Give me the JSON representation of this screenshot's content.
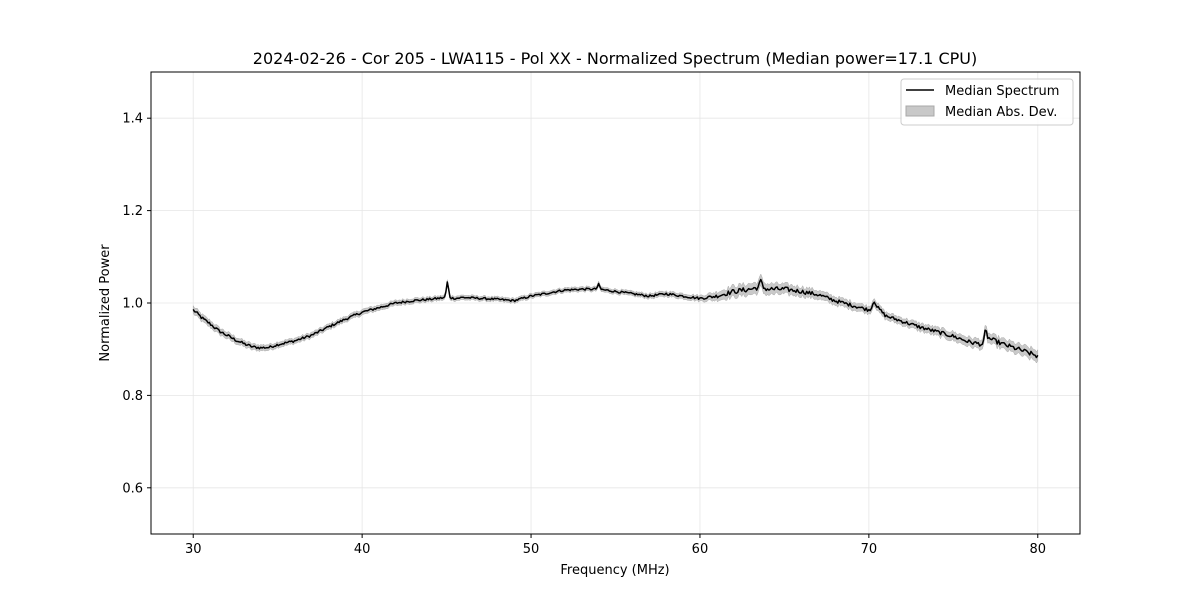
{
  "chart_data": {
    "type": "line",
    "title": "2024-02-26 - Cor 205 - LWA115 - Pol XX - Normalized Spectrum (Median power=17.1 CPU)",
    "xlabel": "Frequency (MHz)",
    "ylabel": "Normalized Power",
    "xlim": [
      27.5,
      82.5
    ],
    "ylim": [
      0.5,
      1.5
    ],
    "xticks": [
      30,
      40,
      50,
      60,
      70,
      80
    ],
    "yticks": [
      0.6,
      0.8,
      1.0,
      1.2,
      1.4
    ],
    "xtick_labels": [
      "30",
      "40",
      "50",
      "60",
      "70",
      "80"
    ],
    "ytick_labels": [
      "0.6",
      "0.8",
      "1.0",
      "1.2",
      "1.4"
    ],
    "grid": true,
    "legend": {
      "position": "top-right",
      "entries": [
        {
          "label": "Median Spectrum",
          "kind": "line",
          "color": "#000000"
        },
        {
          "label": "Median Abs. Dev.",
          "kind": "band",
          "color": "#bbbbbb"
        }
      ]
    },
    "series": [
      {
        "name": "Median Spectrum",
        "x": [
          30,
          30.3,
          30.6,
          31,
          31.5,
          32,
          32.5,
          33,
          33.5,
          34,
          34.5,
          35,
          36,
          37,
          38,
          39,
          40,
          41,
          42,
          43,
          44,
          45,
          45.5,
          46,
          47,
          48,
          49,
          50,
          50.8,
          51.5,
          52,
          53,
          54,
          55,
          56,
          57,
          58,
          59,
          60,
          61,
          62,
          63,
          63.6,
          64,
          65,
          66,
          67,
          68,
          69,
          70,
          70.4,
          71,
          72,
          73,
          74,
          75,
          76,
          76.8,
          77,
          78,
          79,
          80
        ],
        "y": [
          0.985,
          0.975,
          0.965,
          0.955,
          0.94,
          0.93,
          0.92,
          0.912,
          0.905,
          0.903,
          0.904,
          0.91,
          0.918,
          0.93,
          0.948,
          0.965,
          0.98,
          0.99,
          1.0,
          1.005,
          1.008,
          1.012,
          1.01,
          1.012,
          1.01,
          1.008,
          1.005,
          1.015,
          1.02,
          1.025,
          1.028,
          1.03,
          1.03,
          1.025,
          1.02,
          1.015,
          1.02,
          1.015,
          1.01,
          1.015,
          1.025,
          1.03,
          1.035,
          1.03,
          1.03,
          1.025,
          1.018,
          1.005,
          0.995,
          0.985,
          0.995,
          0.972,
          0.96,
          0.948,
          0.938,
          0.928,
          0.915,
          0.91,
          0.925,
          0.91,
          0.898,
          0.885
        ]
      },
      {
        "name": "Median Abs. Dev.",
        "x": [
          30,
          35,
          40,
          45,
          50,
          55,
          60,
          62,
          64,
          66,
          68,
          70,
          72,
          74,
          76,
          78,
          80
        ],
        "deviation": [
          0.008,
          0.006,
          0.006,
          0.005,
          0.005,
          0.005,
          0.006,
          0.012,
          0.012,
          0.01,
          0.009,
          0.008,
          0.008,
          0.009,
          0.01,
          0.011,
          0.012
        ]
      }
    ],
    "spikes": [
      {
        "x": 45.05,
        "y": 1.045
      },
      {
        "x": 54.0,
        "y": 1.04
      },
      {
        "x": 63.6,
        "y": 1.048
      },
      {
        "x": 70.3,
        "y": 1.005
      },
      {
        "x": 76.9,
        "y": 0.94
      }
    ]
  }
}
